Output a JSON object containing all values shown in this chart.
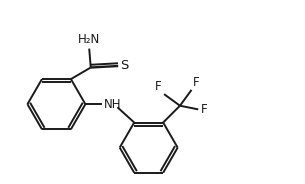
{
  "bg_color": "#ffffff",
  "line_color": "#1a1a1a",
  "line_width": 1.4,
  "font_size": 8.5,
  "xlim": [
    0,
    10
  ],
  "ylim": [
    0,
    6
  ],
  "figsize": [
    3.05,
    1.84
  ],
  "dpi": 100
}
